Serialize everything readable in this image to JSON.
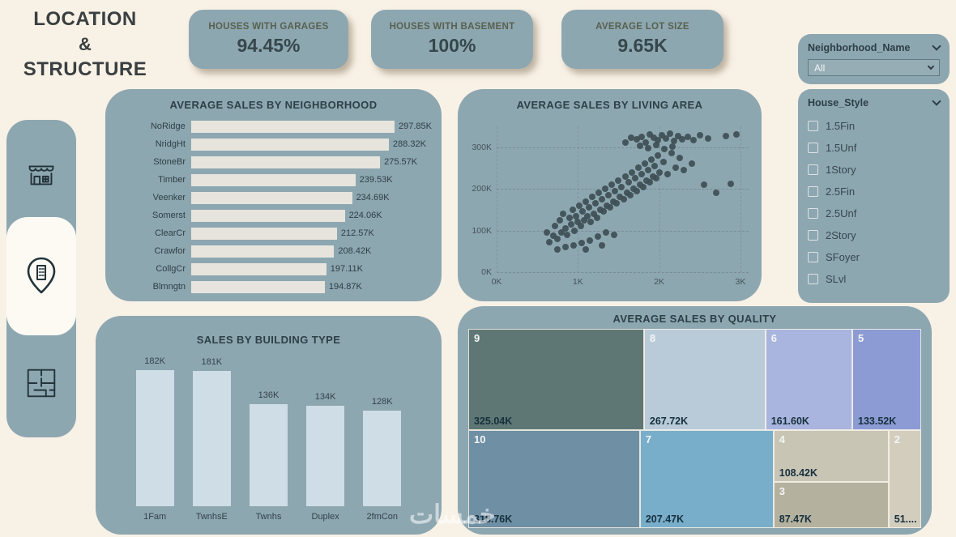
{
  "title": {
    "line1": "LOCATION",
    "line2": "&",
    "line3": "STRUCTURE"
  },
  "kpis": [
    {
      "label": "HOUSES WITH GARAGES",
      "value": "94.45%"
    },
    {
      "label": "HOUSES WITH BASEMENT",
      "value": "100%"
    },
    {
      "label": "AVERAGE LOT SIZE",
      "value": "9.65K"
    }
  ],
  "filters": {
    "neighborhood": {
      "label": "Neighborhood_Name",
      "selected": "All"
    },
    "house_style": {
      "label": "House_Style",
      "options": [
        "1.5Fin",
        "1.5Unf",
        "1Story",
        "2.5Fin",
        "2.5Unf",
        "2Story",
        "SFoyer",
        "SLvl"
      ]
    }
  },
  "watermark": "خمسات",
  "chart_data": [
    {
      "id": "neighborhood",
      "type": "bar",
      "orientation": "horizontal",
      "title": "AVERAGE SALES BY NEIGHBORHOOD",
      "categories": [
        "NoRidge",
        "NridgHt",
        "StoneBr",
        "Timber",
        "Veenker",
        "Somerst",
        "ClearCr",
        "Crawfor",
        "CollgCr",
        "Blmngtn"
      ],
      "values": [
        297.85,
        288.32,
        275.57,
        239.53,
        234.69,
        224.06,
        212.57,
        208.42,
        197.11,
        194.87
      ],
      "labels": [
        "297.85K",
        "288.32K",
        "275.57K",
        "239.53K",
        "234.69K",
        "224.06K",
        "212.57K",
        "208.42K",
        "197.11K",
        "194.87K"
      ],
      "xlim": [
        0,
        300
      ]
    },
    {
      "id": "living_area",
      "type": "scatter",
      "title": "AVERAGE SALES BY LIVING AREA",
      "xlim": [
        0,
        3.1
      ],
      "ylim": [
        0,
        350
      ],
      "xticks": [
        {
          "v": 0,
          "label": "0K"
        },
        {
          "v": 1,
          "label": "1K"
        },
        {
          "v": 2,
          "label": "2K"
        },
        {
          "v": 3,
          "label": "3K"
        }
      ],
      "yticks": [
        {
          "v": 0,
          "label": "0K"
        },
        {
          "v": 100,
          "label": "100K"
        },
        {
          "v": 200,
          "label": "200K"
        },
        {
          "v": 300,
          "label": "300K"
        }
      ],
      "points": [
        [
          1.58,
          312
        ],
        [
          1.65,
          322
        ],
        [
          1.72,
          318
        ],
        [
          1.78,
          325
        ],
        [
          1.83,
          312
        ],
        [
          1.88,
          330
        ],
        [
          1.93,
          322
        ],
        [
          1.98,
          316
        ],
        [
          2.03,
          328
        ],
        [
          2.08,
          320
        ],
        [
          2.13,
          333
        ],
        [
          2.18,
          315
        ],
        [
          2.23,
          326
        ],
        [
          2.28,
          319
        ],
        [
          2.35,
          324
        ],
        [
          2.42,
          317
        ],
        [
          2.5,
          329
        ],
        [
          2.6,
          321
        ],
        [
          2.82,
          327
        ],
        [
          2.95,
          331
        ],
        [
          1.76,
          303
        ],
        [
          1.86,
          297
        ],
        [
          1.96,
          306
        ],
        [
          2.06,
          295
        ],
        [
          2.16,
          301
        ],
        [
          0.62,
          95
        ],
        [
          0.65,
          72
        ],
        [
          0.7,
          88
        ],
        [
          0.72,
          110
        ],
        [
          0.75,
          80
        ],
        [
          0.78,
          125
        ],
        [
          0.8,
          95
        ],
        [
          0.82,
          140
        ],
        [
          0.85,
          105
        ],
        [
          0.87,
          90
        ],
        [
          0.9,
          130
        ],
        [
          0.92,
          115
        ],
        [
          0.94,
          150
        ],
        [
          0.96,
          100
        ],
        [
          0.98,
          135
        ],
        [
          1.0,
          120
        ],
        [
          1.02,
          160
        ],
        [
          1.04,
          110
        ],
        [
          1.06,
          145
        ],
        [
          1.08,
          125
        ],
        [
          1.1,
          170
        ],
        [
          1.12,
          135
        ],
        [
          1.14,
          155
        ],
        [
          1.16,
          120
        ],
        [
          1.18,
          180
        ],
        [
          1.2,
          140
        ],
        [
          1.22,
          165
        ],
        [
          1.24,
          130
        ],
        [
          1.26,
          190
        ],
        [
          1.28,
          150
        ],
        [
          1.3,
          175
        ],
        [
          1.32,
          145
        ],
        [
          1.34,
          200
        ],
        [
          1.36,
          160
        ],
        [
          1.38,
          185
        ],
        [
          1.4,
          155
        ],
        [
          1.42,
          210
        ],
        [
          1.44,
          170
        ],
        [
          1.46,
          195
        ],
        [
          1.48,
          165
        ],
        [
          1.5,
          220
        ],
        [
          1.52,
          180
        ],
        [
          1.54,
          205
        ],
        [
          1.56,
          175
        ],
        [
          1.58,
          230
        ],
        [
          1.6,
          190
        ],
        [
          1.62,
          215
        ],
        [
          1.64,
          185
        ],
        [
          1.66,
          240
        ],
        [
          1.68,
          200
        ],
        [
          1.7,
          225
        ],
        [
          1.72,
          195
        ],
        [
          1.74,
          250
        ],
        [
          1.76,
          210
        ],
        [
          1.78,
          235
        ],
        [
          1.8,
          205
        ],
        [
          1.82,
          260
        ],
        [
          1.84,
          220
        ],
        [
          1.86,
          245
        ],
        [
          1.88,
          215
        ],
        [
          1.9,
          270
        ],
        [
          1.92,
          230
        ],
        [
          1.94,
          255
        ],
        [
          1.96,
          225
        ],
        [
          1.98,
          280
        ],
        [
          2.0,
          240
        ],
        [
          2.05,
          265
        ],
        [
          2.1,
          235
        ],
        [
          2.15,
          285
        ],
        [
          2.2,
          250
        ],
        [
          2.25,
          275
        ],
        [
          2.3,
          245
        ],
        [
          2.4,
          260
        ],
        [
          2.55,
          210
        ],
        [
          2.7,
          190
        ],
        [
          2.88,
          212
        ],
        [
          0.75,
          55
        ],
        [
          0.85,
          60
        ],
        [
          0.95,
          65
        ],
        [
          1.05,
          70
        ],
        [
          1.15,
          75
        ],
        [
          1.25,
          85
        ],
        [
          1.35,
          95
        ],
        [
          1.45,
          90
        ],
        [
          1.1,
          55
        ],
        [
          1.3,
          65
        ]
      ]
    },
    {
      "id": "building_type",
      "type": "bar",
      "orientation": "vertical",
      "title": "SALES BY BUILDING TYPE",
      "categories": [
        "1Fam",
        "TwnhsE",
        "Twnhs",
        "Duplex",
        "2fmCon"
      ],
      "values": [
        182,
        181,
        136,
        134,
        128
      ],
      "labels": [
        "182K",
        "181K",
        "136K",
        "134K",
        "128K"
      ],
      "ylim": [
        0,
        195
      ]
    },
    {
      "id": "quality",
      "type": "treemap",
      "title": "AVERAGE SALES BY QUALITY",
      "tiles": [
        {
          "label": "9",
          "value": "325.04K",
          "color": "#5f7774",
          "x": 0,
          "y": 0,
          "w": 38.8,
          "h": 51
        },
        {
          "label": "8",
          "value": "267.72K",
          "color": "#b9cbd8",
          "x": 38.8,
          "y": 0,
          "w": 26.8,
          "h": 51
        },
        {
          "label": "6",
          "value": "161.60K",
          "color": "#a9b5de",
          "x": 65.6,
          "y": 0,
          "w": 19.2,
          "h": 51
        },
        {
          "label": "5",
          "value": "133.52K",
          "color": "#8c9bd3",
          "x": 84.8,
          "y": 0,
          "w": 15.2,
          "h": 51
        },
        {
          "label": "10",
          "value": "318.76K",
          "color": "#6f8fa4",
          "x": 0,
          "y": 51,
          "w": 37.9,
          "h": 49
        },
        {
          "label": "7",
          "value": "207.47K",
          "color": "#79aeca",
          "x": 37.9,
          "y": 51,
          "w": 29.5,
          "h": 49
        },
        {
          "label": "4",
          "value": "108.42K",
          "color": "#c9c5b5",
          "x": 67.4,
          "y": 51,
          "w": 25.4,
          "h": 26
        },
        {
          "label": "3",
          "value": "87.47K",
          "color": "#b4b19f",
          "x": 67.4,
          "y": 77,
          "w": 25.4,
          "h": 23
        },
        {
          "label": "2",
          "value": "51....",
          "color": "#d2cdbd",
          "x": 92.8,
          "y": 51,
          "w": 7.2,
          "h": 49
        }
      ]
    }
  ]
}
